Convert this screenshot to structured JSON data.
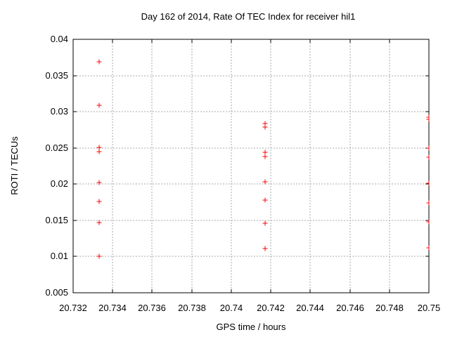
{
  "window": {
    "background": "#ffffff"
  },
  "colors": {
    "marker": "#ff0000",
    "grid": "#aaaaaa",
    "axis": "#000000",
    "text": "#000000"
  },
  "chart_data": {
    "type": "scatter",
    "title": "Day 162 of 2014, Rate Of TEC Index for receiver hil1",
    "xlabel": "GPS time / hours",
    "ylabel": "ROTI / TECUs",
    "xlim": [
      20.732,
      20.75
    ],
    "ylim": [
      0.005,
      0.04
    ],
    "grid": true,
    "grid_style": "dashed",
    "legend": "none",
    "marker": {
      "shape": "plus",
      "color": "#ff0000",
      "size": 7
    },
    "xticks": [
      {
        "v": 20.732,
        "label": "20.732"
      },
      {
        "v": 20.734,
        "label": "20.734"
      },
      {
        "v": 20.736,
        "label": "20.736"
      },
      {
        "v": 20.738,
        "label": "20.738"
      },
      {
        "v": 20.74,
        "label": "20.74"
      },
      {
        "v": 20.742,
        "label": "20.742"
      },
      {
        "v": 20.744,
        "label": "20.744"
      },
      {
        "v": 20.746,
        "label": "20.746"
      },
      {
        "v": 20.748,
        "label": "20.748"
      },
      {
        "v": 20.75,
        "label": "20.75"
      }
    ],
    "yticks": [
      {
        "v": 0.005,
        "label": "0.005"
      },
      {
        "v": 0.01,
        "label": "0.01"
      },
      {
        "v": 0.015,
        "label": "0.015"
      },
      {
        "v": 0.02,
        "label": "0.02"
      },
      {
        "v": 0.025,
        "label": "0.025"
      },
      {
        "v": 0.03,
        "label": "0.03"
      },
      {
        "v": 0.035,
        "label": "0.035"
      },
      {
        "v": 0.04,
        "label": "0.04"
      }
    ],
    "series": [
      {
        "name": "ROTI",
        "points": [
          {
            "x": 20.7333,
            "y": 0.0369
          },
          {
            "x": 20.7333,
            "y": 0.0309
          },
          {
            "x": 20.7333,
            "y": 0.0251
          },
          {
            "x": 20.7333,
            "y": 0.0245
          },
          {
            "x": 20.7333,
            "y": 0.0202
          },
          {
            "x": 20.7333,
            "y": 0.0176
          },
          {
            "x": 20.7333,
            "y": 0.0147
          },
          {
            "x": 20.7333,
            "y": 0.01
          },
          {
            "x": 20.7417,
            "y": 0.0284
          },
          {
            "x": 20.7417,
            "y": 0.0279
          },
          {
            "x": 20.7417,
            "y": 0.0244
          },
          {
            "x": 20.7417,
            "y": 0.0238
          },
          {
            "x": 20.7417,
            "y": 0.0203
          },
          {
            "x": 20.7417,
            "y": 0.0178
          },
          {
            "x": 20.7417,
            "y": 0.0146
          },
          {
            "x": 20.7417,
            "y": 0.0111
          },
          {
            "x": 20.75,
            "y": 0.0292
          },
          {
            "x": 20.75,
            "y": 0.0289
          },
          {
            "x": 20.75,
            "y": 0.025
          },
          {
            "x": 20.75,
            "y": 0.0237
          },
          {
            "x": 20.75,
            "y": 0.0201
          },
          {
            "x": 20.75,
            "y": 0.0174
          },
          {
            "x": 20.75,
            "y": 0.0148
          },
          {
            "x": 20.75,
            "y": 0.0112
          }
        ]
      }
    ]
  }
}
